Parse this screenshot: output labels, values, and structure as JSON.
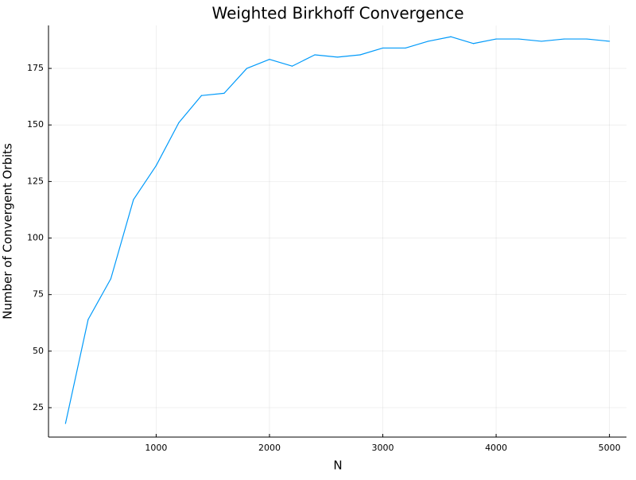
{
  "chart_data": {
    "type": "line",
    "title": "Weighted Birkhoff Convergence",
    "xlabel": "N",
    "ylabel": "Number of Convergent Orbits",
    "xlim": [
      50,
      5150
    ],
    "ylim": [
      12,
      194
    ],
    "xticks": [
      1000,
      2000,
      3000,
      4000,
      5000
    ],
    "xtick_labels": [
      "1000",
      "2000",
      "3000",
      "4000",
      "5000"
    ],
    "yticks": [
      25,
      50,
      75,
      100,
      125,
      150,
      175
    ],
    "ytick_labels": [
      "25",
      "50",
      "75",
      "100",
      "125",
      "150",
      "175"
    ],
    "grid": true,
    "legend": "none",
    "series": [
      {
        "color": "#009AFA",
        "x": [
          200,
          400,
          600,
          800,
          1000,
          1200,
          1400,
          1600,
          1800,
          2000,
          2200,
          2400,
          2600,
          2800,
          3000,
          3200,
          3400,
          3600,
          3800,
          4000,
          4200,
          4400,
          4600,
          4800,
          5000
        ],
        "y": [
          18,
          64,
          82,
          117,
          132,
          151,
          163,
          164,
          175,
          179,
          176,
          181,
          180,
          181,
          184,
          184,
          187,
          189,
          186,
          188,
          188,
          187,
          188,
          188,
          187
        ]
      }
    ]
  }
}
